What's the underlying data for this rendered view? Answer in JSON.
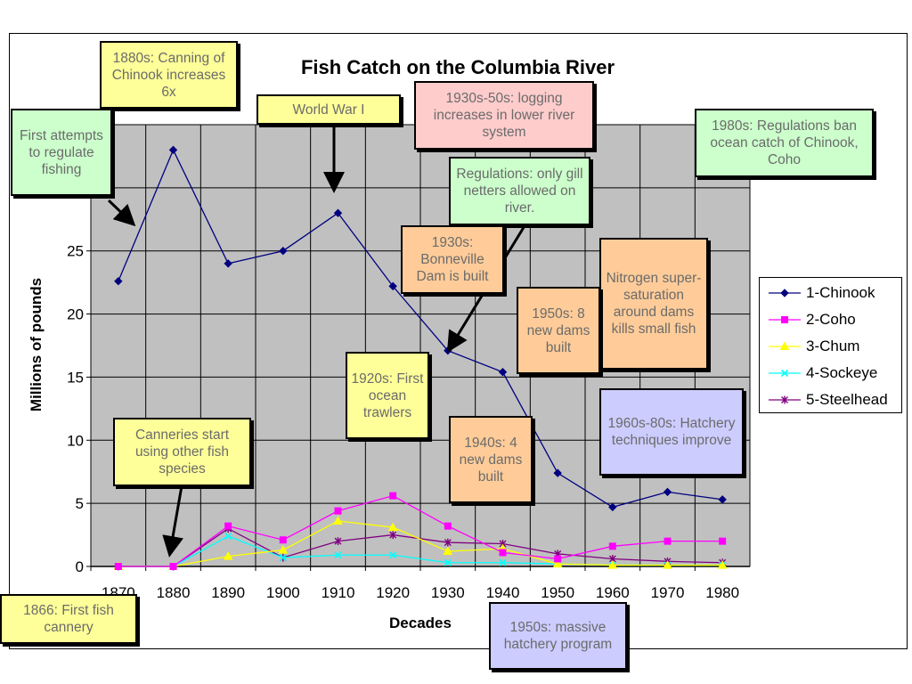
{
  "chart_data": {
    "type": "line",
    "title": "Fish Catch on the Columbia River",
    "xlabel": "Decades",
    "ylabel": "Millions of pounds",
    "categories": [
      "1870",
      "1880",
      "1890",
      "1900",
      "1910",
      "1920",
      "1930",
      "1940",
      "1950",
      "1960",
      "1970",
      "1980"
    ],
    "yticks": [
      "0",
      "5",
      "10",
      "15",
      "20",
      "25"
    ],
    "ylim": [
      0,
      35
    ],
    "grid": true,
    "plot_background": "#c0c0c0",
    "legend_position": "right",
    "series": [
      {
        "name": "1-Chinook",
        "color": "#000080",
        "marker": "diamond",
        "values": [
          22.6,
          33.0,
          24.0,
          25.0,
          28.0,
          22.2,
          17.1,
          15.4,
          7.4,
          4.7,
          5.9,
          5.3
        ]
      },
      {
        "name": "2-Coho",
        "color": "#ff00ff",
        "marker": "square",
        "values": [
          0,
          0,
          3.2,
          2.1,
          4.4,
          5.6,
          3.2,
          1.1,
          0.6,
          1.6,
          2.0,
          2.0
        ]
      },
      {
        "name": "3-Chum",
        "color": "#ffff00",
        "marker": "triangle",
        "values": [
          0,
          0,
          0.8,
          1.3,
          3.6,
          3.1,
          1.2,
          1.4,
          0.2,
          0.1,
          0.1,
          0.1
        ]
      },
      {
        "name": "4-Sockeye",
        "color": "#00ffff",
        "marker": "x",
        "values": [
          0,
          0,
          2.4,
          0.7,
          0.9,
          0.9,
          0.3,
          0.3,
          0.2,
          0.1,
          0.1,
          0.1
        ]
      },
      {
        "name": "5-Steelhead",
        "color": "#800080",
        "marker": "star",
        "values": [
          0,
          0,
          3.0,
          0.7,
          2.0,
          2.5,
          1.9,
          1.8,
          1.0,
          0.6,
          0.4,
          0.3
        ]
      }
    ]
  },
  "annotations": {
    "canning_1880s": "1880s: Canning of Chinook increases 6x",
    "first_regulate": "First attempts to regulate fishing",
    "ww1": "World War I",
    "logging": "1930s-50s: logging increases in lower river system",
    "regs_1980s": "1980s: Regulations ban ocean catch of Chinook, Coho",
    "gill_netters": "Regulations: only gill netters allowed on river.",
    "bonneville": "1930s: Bonneville Dam is built",
    "nitrogen": "Nitrogen super-saturation around dams kills small fish",
    "dams_1950s": "1950s: 8 new dams built",
    "trawlers": "1920s: First ocean trawlers",
    "hatchery_tech": "1960s-80s: Hatchery techniques improve",
    "canneries_other": "Canneries start using other fish species",
    "dams_1940s": "1940s: 4 new dams built",
    "first_cannery": "1866: First fish cannery",
    "hatchery_program": "1950s: massive hatchery program"
  }
}
